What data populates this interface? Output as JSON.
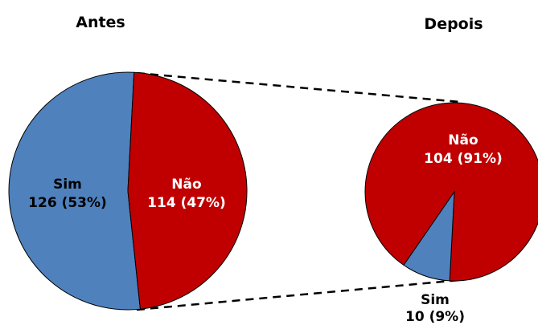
{
  "chart_data": {
    "type": "pie",
    "colors": {
      "sim": "#4f81bd",
      "nao": "#c00000"
    },
    "charts": [
      {
        "title": "Antes",
        "slices": [
          {
            "label": "Sim",
            "value": 126,
            "percent": "53%",
            "text": "126 (53%)"
          },
          {
            "label": "Não",
            "value": 114,
            "percent": "47%",
            "text": "114 (47%)"
          }
        ]
      },
      {
        "title": "Depois",
        "slices": [
          {
            "label": "Não",
            "value": 104,
            "percent": "91%",
            "text": "104 (91%)"
          },
          {
            "label": "Sim",
            "value": 10,
            "percent": "9%",
            "text": "10 (9%)"
          }
        ]
      }
    ]
  }
}
